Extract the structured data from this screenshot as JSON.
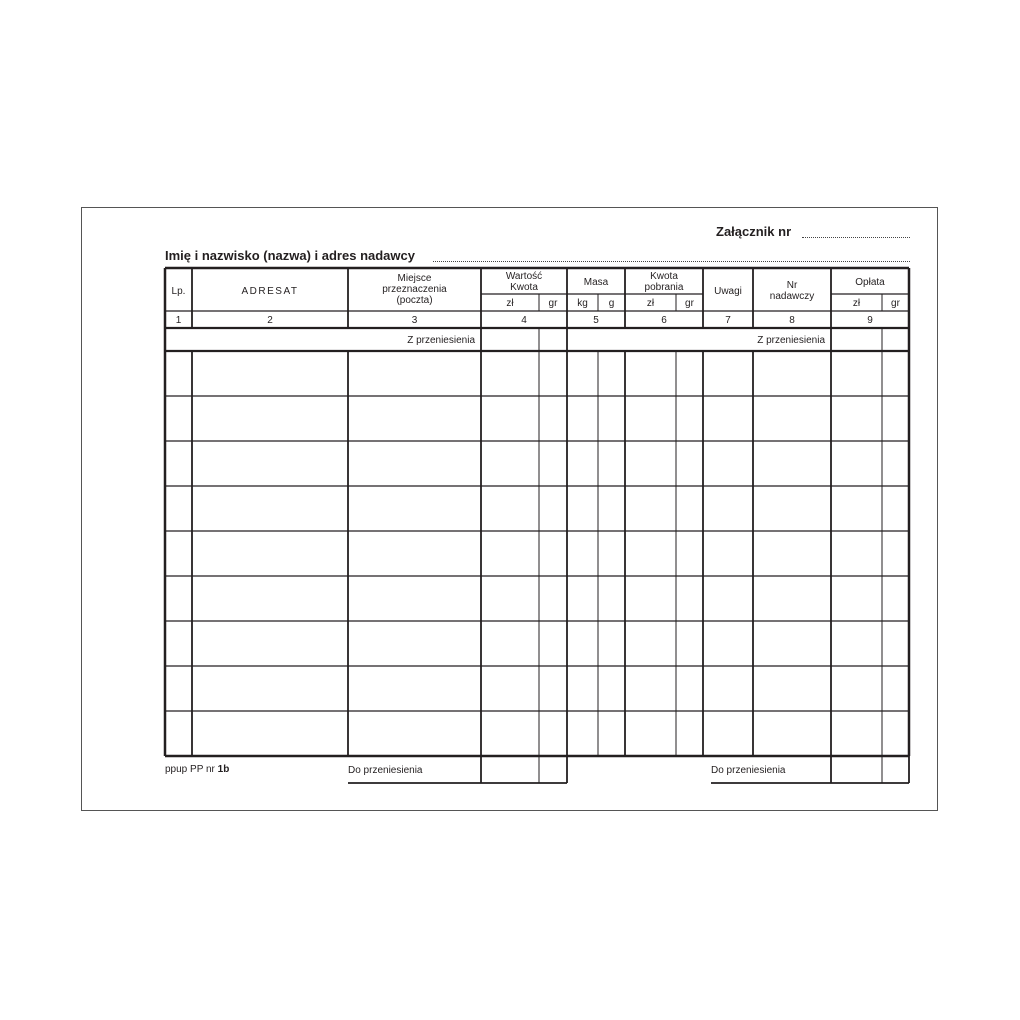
{
  "form": {
    "attachment_label": "Załącznik nr",
    "sender_label": "Imię i nazwisko (nazwa) i adres nadawcy",
    "headers": {
      "lp": "Lp.",
      "adresat": "ADRESAT",
      "miejsce": [
        "Miejsce",
        "przeznaczenia",
        "(poczta)"
      ],
      "wartosc": [
        "Wartość",
        "Kwota"
      ],
      "masa": "Masa",
      "kwota_pobrania": [
        "Kwota",
        "pobrania"
      ],
      "uwagi": "Uwagi",
      "nr_nadawczy": [
        "Nr",
        "nadawczy"
      ],
      "oplata": "Opłata",
      "zl": "zł",
      "gr": "gr",
      "kg": "kg",
      "g": "g"
    },
    "column_numbers": [
      "1",
      "2",
      "3",
      "4",
      "5",
      "6",
      "7",
      "8",
      "9"
    ],
    "carried_from": "Z przeniesienia",
    "carry_to": "Do przeniesienia",
    "form_code_prefix": "ppup PP nr ",
    "form_code_number": "1b",
    "empty_rows": 9
  }
}
